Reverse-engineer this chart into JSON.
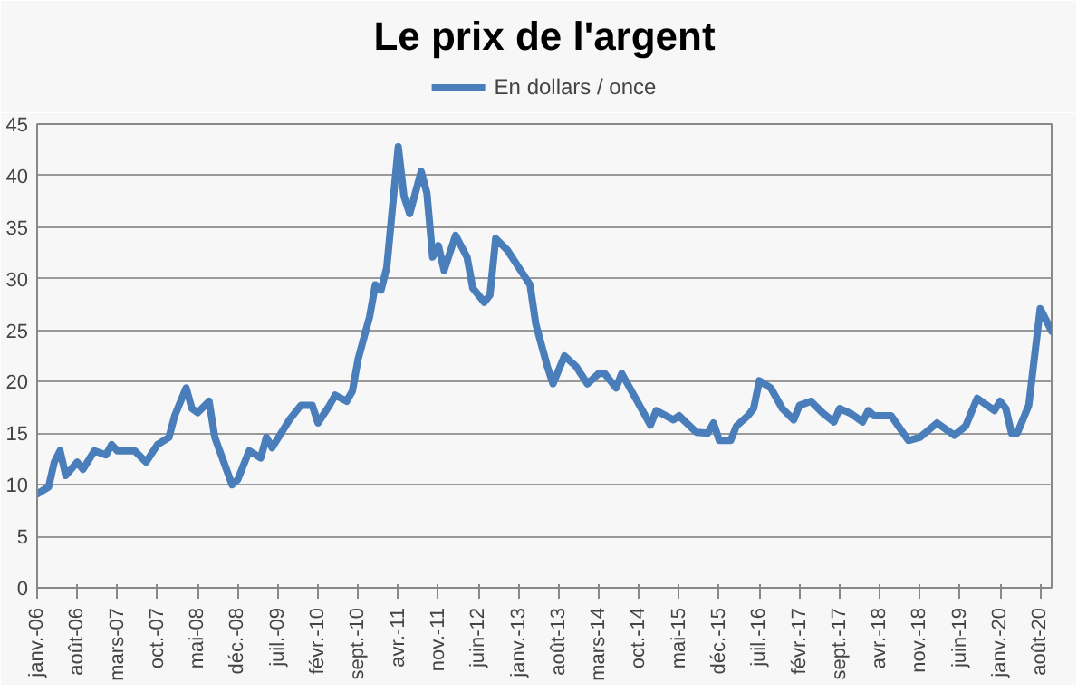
{
  "chart_data": {
    "type": "line",
    "title": "Le prix de l'argent",
    "legend": "top",
    "grid": "y",
    "marker": "none",
    "line_style": "solid",
    "xlim": [
      "2006-01",
      "2020-10"
    ],
    "ylim": [
      0,
      45
    ],
    "yticks": [
      0,
      5,
      10,
      15,
      20,
      25,
      30,
      35,
      40,
      45
    ],
    "xticks": [
      {
        "value": "2006-01",
        "label": "janv.-06"
      },
      {
        "value": "2006-08",
        "label": "août-06"
      },
      {
        "value": "2007-03",
        "label": "mars-07"
      },
      {
        "value": "2007-10",
        "label": "oct.-07"
      },
      {
        "value": "2008-05",
        "label": "mai-08"
      },
      {
        "value": "2008-12",
        "label": "déc.-08"
      },
      {
        "value": "2009-07",
        "label": "juil.-09"
      },
      {
        "value": "2010-02",
        "label": "févr.-10"
      },
      {
        "value": "2010-09",
        "label": "sept.-10"
      },
      {
        "value": "2011-04",
        "label": "avr.-11"
      },
      {
        "value": "2011-11",
        "label": "nov.-11"
      },
      {
        "value": "2012-06",
        "label": "juin-12"
      },
      {
        "value": "2013-01",
        "label": "janv.-13"
      },
      {
        "value": "2013-08",
        "label": "août-13"
      },
      {
        "value": "2014-03",
        "label": "mars-14"
      },
      {
        "value": "2014-10",
        "label": "oct.-14"
      },
      {
        "value": "2015-05",
        "label": "mai-15"
      },
      {
        "value": "2015-12",
        "label": "déc.-15"
      },
      {
        "value": "2016-07",
        "label": "juil.-16"
      },
      {
        "value": "2017-02",
        "label": "févr.-17"
      },
      {
        "value": "2017-09",
        "label": "sept.-17"
      },
      {
        "value": "2018-04",
        "label": "avr.-18"
      },
      {
        "value": "2018-11",
        "label": "nov.-18"
      },
      {
        "value": "2019-06",
        "label": "juin-19"
      },
      {
        "value": "2020-01",
        "label": "janv.-20"
      },
      {
        "value": "2020-08",
        "label": "août-20"
      }
    ],
    "x": [
      "2006-01",
      "2006-03",
      "2006-04",
      "2006-05",
      "2006-06",
      "2006-08",
      "2006-09",
      "2006-11",
      "2007-01",
      "2007-02",
      "2007-03",
      "2007-06",
      "2007-08",
      "2007-10",
      "2007-12",
      "2008-01",
      "2008-03",
      "2008-04",
      "2008-05",
      "2008-07",
      "2008-08",
      "2008-11",
      "2008-12",
      "2009-02",
      "2009-04",
      "2009-05",
      "2009-06",
      "2009-09",
      "2009-11",
      "2010-01",
      "2010-02",
      "2010-04",
      "2010-05",
      "2010-07",
      "2010-08",
      "2010-09",
      "2010-11",
      "2010-12",
      "2011-01",
      "2011-02",
      "2011-04",
      "2011-05",
      "2011-06",
      "2011-08",
      "2011-09",
      "2011-10",
      "2011-11",
      "2011-12",
      "2012-02",
      "2012-04",
      "2012-05",
      "2012-07",
      "2012-08",
      "2012-09",
      "2012-11",
      "2013-01",
      "2013-03",
      "2013-04",
      "2013-06",
      "2013-07",
      "2013-09",
      "2013-11",
      "2014-01",
      "2014-03",
      "2014-04",
      "2014-06",
      "2014-07",
      "2014-09",
      "2014-12",
      "2015-01",
      "2015-04",
      "2015-05",
      "2015-08",
      "2015-10",
      "2015-11",
      "2015-12",
      "2016-02",
      "2016-03",
      "2016-05",
      "2016-06",
      "2016-07",
      "2016-09",
      "2016-11",
      "2017-01",
      "2017-02",
      "2017-04",
      "2017-06",
      "2017-08",
      "2017-09",
      "2017-11",
      "2018-01",
      "2018-02",
      "2018-03",
      "2018-06",
      "2018-09",
      "2018-11",
      "2019-02",
      "2019-05",
      "2019-07",
      "2019-09",
      "2019-12",
      "2020-01",
      "2020-02",
      "2020-03",
      "2020-04",
      "2020-06",
      "2020-08",
      "2020-10"
    ],
    "series": [
      {
        "name": "En dollars / once",
        "color": "#4a7ebb",
        "values": [
          9.1,
          9.8,
          12.2,
          13.3,
          10.9,
          12.2,
          11.5,
          13.3,
          12.9,
          13.9,
          13.3,
          13.3,
          12.2,
          13.9,
          14.6,
          16.7,
          19.4,
          17.4,
          17.0,
          18.1,
          14.6,
          10.0,
          10.5,
          13.3,
          12.6,
          14.6,
          13.6,
          16.3,
          17.7,
          17.7,
          16.0,
          17.7,
          18.7,
          18.1,
          19.1,
          22.2,
          26.3,
          29.4,
          28.9,
          31.1,
          42.8,
          38.0,
          36.3,
          40.4,
          38.3,
          32.1,
          33.2,
          30.8,
          34.2,
          32.1,
          29.1,
          27.7,
          28.4,
          33.9,
          32.8,
          31.1,
          29.4,
          25.6,
          21.5,
          19.8,
          22.5,
          21.5,
          19.8,
          20.8,
          20.8,
          19.4,
          20.8,
          18.8,
          15.8,
          17.2,
          16.3,
          16.7,
          15.1,
          15.0,
          16.0,
          14.3,
          14.3,
          15.7,
          16.7,
          17.4,
          20.1,
          19.4,
          17.4,
          16.3,
          17.7,
          18.1,
          17.0,
          16.1,
          17.4,
          16.9,
          16.1,
          17.2,
          16.7,
          16.7,
          14.3,
          14.6,
          16.0,
          14.8,
          15.7,
          18.4,
          17.2,
          18.1,
          17.4,
          15.0,
          15.0,
          17.7,
          27.1,
          24.9
        ]
      }
    ]
  }
}
